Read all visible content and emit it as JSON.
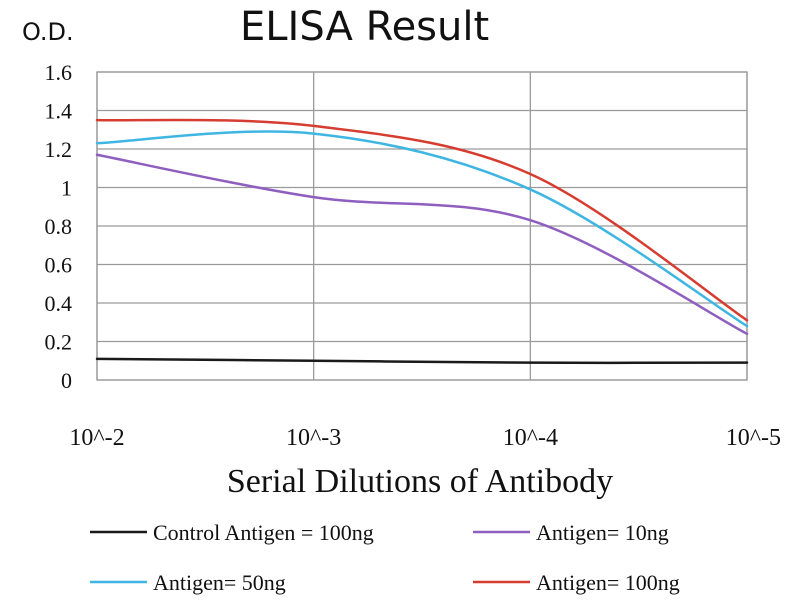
{
  "chart_data": {
    "type": "line",
    "title": "ELISA Result",
    "ylabel": "O.D.",
    "xlabel": "Serial Dilutions of Antibody",
    "x_scale": "log",
    "x_ticks": [
      "10^-2",
      "10^-3",
      "10^-4",
      "10^-5"
    ],
    "xlim": [
      0.01,
      1e-05
    ],
    "ylim": [
      0,
      1.6
    ],
    "y_ticks": [
      "0",
      "0.2",
      "0.4",
      "0.6",
      "0.8",
      "1",
      "1.2",
      "1.4",
      "1.6"
    ],
    "grid": true,
    "legend_position": "bottom",
    "series": [
      {
        "name": "Control Antigen = 100ng",
        "color": "#1a1a1a",
        "x": [
          0.01,
          0.001,
          0.0001,
          1e-05
        ],
        "y": [
          0.11,
          0.1,
          0.09,
          0.09
        ]
      },
      {
        "name": "Antigen= 10ng",
        "color": "#8f5fc0",
        "x": [
          0.01,
          0.001,
          0.0001,
          1e-05
        ],
        "y": [
          1.17,
          0.95,
          0.83,
          0.24
        ]
      },
      {
        "name": "Antigen= 50ng",
        "color": "#3fb6e2",
        "x": [
          0.01,
          0.001,
          0.0001,
          1e-05
        ],
        "y": [
          1.23,
          1.28,
          0.99,
          0.28
        ]
      },
      {
        "name": "Antigen= 100ng",
        "color": "#d63c2f",
        "x": [
          0.01,
          0.001,
          0.0001,
          1e-05
        ],
        "y": [
          1.35,
          1.32,
          1.07,
          0.31
        ]
      }
    ]
  }
}
